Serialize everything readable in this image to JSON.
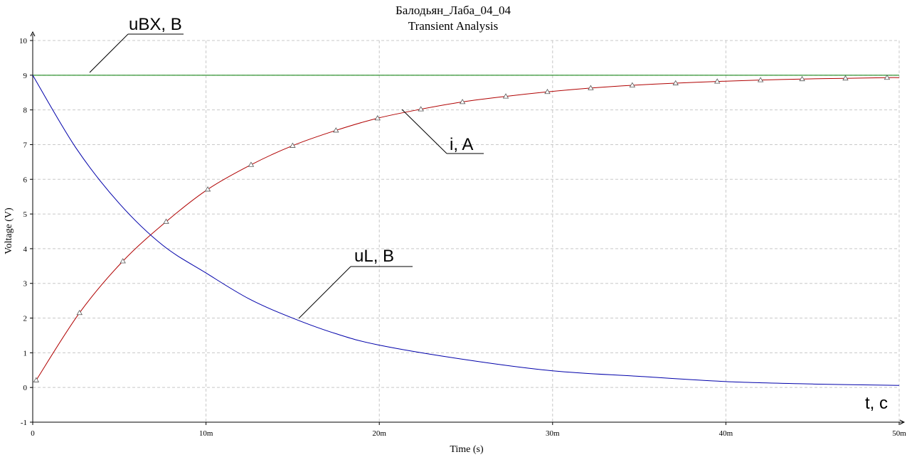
{
  "chart_data": {
    "type": "line",
    "title": "Балодьян_Лаба_04_04",
    "subtitle": "Transient Analysis",
    "xlabel": "Time (s)",
    "ylabel": "Voltage (V)",
    "xlim": [
      0,
      0.05
    ],
    "ylim": [
      -1,
      10
    ],
    "x_ticks": [
      {
        "value": 0,
        "label": "0"
      },
      {
        "value": 0.01,
        "label": "10m"
      },
      {
        "value": 0.02,
        "label": "20m"
      },
      {
        "value": 0.03,
        "label": "30m"
      },
      {
        "value": 0.04,
        "label": "40m"
      },
      {
        "value": 0.05,
        "label": "50m"
      }
    ],
    "y_ticks": [
      {
        "value": -1,
        "label": "-1"
      },
      {
        "value": 0,
        "label": "0"
      },
      {
        "value": 1,
        "label": "1"
      },
      {
        "value": 2,
        "label": "2"
      },
      {
        "value": 3,
        "label": "3"
      },
      {
        "value": 4,
        "label": "4"
      },
      {
        "value": 5,
        "label": "5"
      },
      {
        "value": 6,
        "label": "6"
      },
      {
        "value": 7,
        "label": "7"
      },
      {
        "value": 8,
        "label": "8"
      },
      {
        "value": 9,
        "label": "9"
      },
      {
        "value": 10,
        "label": "10"
      }
    ],
    "grid": true,
    "grid_style": "dashed",
    "series": [
      {
        "name": "uBX, B",
        "color": "#007a00",
        "x": [
          0,
          0.005,
          0.01,
          0.015,
          0.02,
          0.025,
          0.03,
          0.035,
          0.04,
          0.045,
          0.05
        ],
        "values": [
          9,
          9,
          9,
          9,
          9,
          9,
          9,
          9,
          9,
          9,
          9
        ]
      },
      {
        "name": "i, A",
        "color": "#b00000",
        "marker": "triangle",
        "x": [
          0.0002,
          0.0027,
          0.0052,
          0.0077,
          0.0101,
          0.0126,
          0.015,
          0.0175,
          0.0199,
          0.0224,
          0.0248,
          0.0273,
          0.0297,
          0.0322,
          0.0346,
          0.0371,
          0.0395,
          0.042,
          0.0444,
          0.0469,
          0.0493,
          0.05
        ],
        "values": [
          0.21,
          2.15,
          3.64,
          4.78,
          5.71,
          6.42,
          6.97,
          7.41,
          7.76,
          8.02,
          8.23,
          8.39,
          8.52,
          8.63,
          8.71,
          8.77,
          8.82,
          8.86,
          8.89,
          8.91,
          8.93,
          8.93
        ]
      },
      {
        "name": "uL, B",
        "color": "#0000aa",
        "x": [
          0,
          0.0025,
          0.005,
          0.0075,
          0.01,
          0.0125,
          0.015,
          0.0175,
          0.02,
          0.025,
          0.03,
          0.035,
          0.04,
          0.045,
          0.05
        ],
        "values": [
          9.0,
          6.9,
          5.3,
          4.1,
          3.3,
          2.55,
          2.0,
          1.55,
          1.22,
          0.8,
          0.48,
          0.32,
          0.17,
          0.1,
          0.06
        ]
      }
    ],
    "annotations": [
      {
        "text": "uBX, B",
        "series": "uBX, B"
      },
      {
        "text": "i, A",
        "series": "i, A"
      },
      {
        "text": "uL, B",
        "series": "uL, B"
      },
      {
        "text": "t, c",
        "series": ""
      }
    ]
  }
}
